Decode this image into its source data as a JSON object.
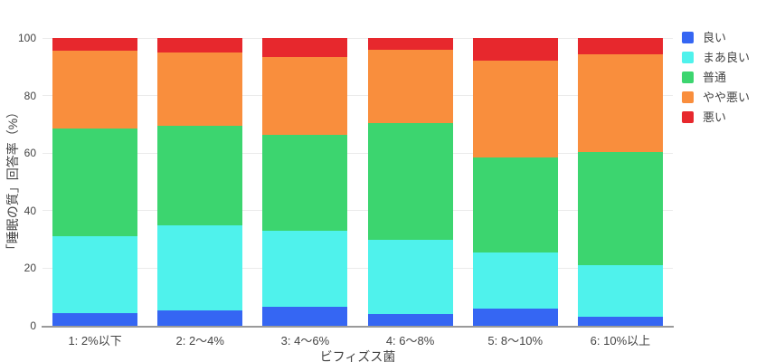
{
  "page": {
    "background": "#ffffff"
  },
  "chart_data": {
    "type": "bar",
    "stacked": "percent",
    "orientation": "vertical",
    "title": "",
    "xlabel": "ビフィズス菌",
    "ylabel": "「睡眠の質」回答率（%）",
    "categories": [
      "1: 2%以下",
      "2: 2〜4%",
      "3: 4〜6%",
      "4: 6〜8%",
      "5: 8〜10%",
      "6: 10%以上"
    ],
    "yticks": [
      0,
      20,
      40,
      60,
      80,
      100
    ],
    "ylim": [
      0,
      100
    ],
    "grid": true,
    "legend_position": "top-right",
    "series": [
      {
        "name": "良い",
        "color": "#3566F3",
        "values": [
          4.5,
          5.5,
          6.5,
          4,
          6,
          3
        ]
      },
      {
        "name": "まあ良い",
        "color": "#4FF2EC",
        "values": [
          26.5,
          29.5,
          26.5,
          26,
          19.5,
          18
        ]
      },
      {
        "name": "普通",
        "color": "#3CD56F",
        "values": [
          37.5,
          34.5,
          33.5,
          40.5,
          33,
          39.5
        ]
      },
      {
        "name": "やや悪い",
        "color": "#F98E3D",
        "values": [
          27,
          25.5,
          27,
          25.5,
          33.5,
          34
        ]
      },
      {
        "name": "悪い",
        "color": "#E7282D",
        "values": [
          4.5,
          5,
          6.5,
          4,
          8,
          5.5
        ]
      }
    ],
    "colors": {
      "grid": "#ebebeb",
      "axis_line": "#9a9a9a",
      "text": "#444444"
    }
  }
}
